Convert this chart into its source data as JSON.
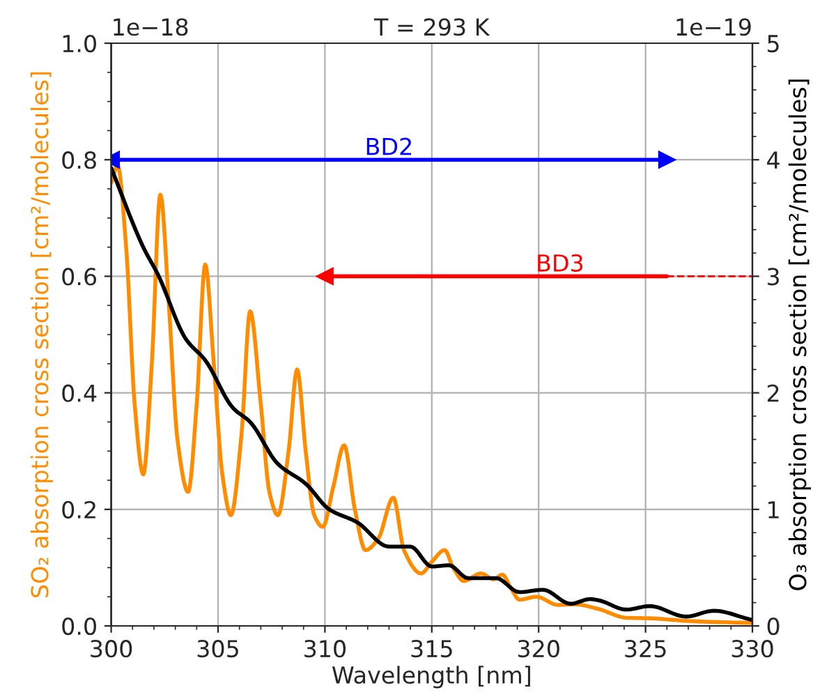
{
  "chart_data": {
    "type": "line",
    "title": "T = 293 K",
    "xlabel": "Wavelength [nm]",
    "ylabel": "SO₂ absorption cross section [cm²/molecules]",
    "y2label": "O₃ absorption cross section [cm²/molecules]",
    "annotations": [
      "1e−18",
      "1e−19",
      {
        "text": "BD2",
        "x": 313,
        "y": 0.8
      },
      {
        "text": "BD3",
        "x": 321,
        "y": 0.6
      }
    ],
    "xlim": [
      300,
      330
    ],
    "xticks": [
      300,
      305,
      310,
      315,
      320,
      325,
      330
    ],
    "ylim": [
      0,
      1.0
    ],
    "yticks": [
      {
        "value": 0,
        "label": "0.0"
      },
      {
        "value": 0.2,
        "label": "0.2"
      },
      {
        "value": 0.4,
        "label": "0.4"
      },
      {
        "value": 0.6,
        "label": "0.6"
      },
      {
        "value": 0.8,
        "label": "0.8"
      },
      {
        "value": 1.0,
        "label": "1.0"
      }
    ],
    "y2lim": [
      0,
      5
    ],
    "y2ticks": [
      0,
      1,
      2,
      3,
      4,
      5
    ],
    "grid": true,
    "series": [
      {
        "color": "#ff8c00",
        "x": [
          300.0,
          300.3,
          300.7,
          301.1,
          301.5,
          301.9,
          302.3,
          302.7,
          303.1,
          303.6,
          304.0,
          304.4,
          304.8,
          305.2,
          305.6,
          306.1,
          306.5,
          307.0,
          307.4,
          307.8,
          308.3,
          308.7,
          309.1,
          309.5,
          309.9,
          310.4,
          310.9,
          311.4,
          311.9,
          312.5,
          313.2,
          313.7,
          314.5,
          315.0,
          315.6,
          316.0,
          316.5,
          317.3,
          317.9,
          318.3,
          318.7,
          319.1,
          319.9,
          320.9,
          321.7,
          322.8,
          324.1,
          325.2,
          327.2,
          330.0
        ],
        "values": [
          0.76,
          0.79,
          0.65,
          0.38,
          0.26,
          0.45,
          0.74,
          0.55,
          0.32,
          0.23,
          0.38,
          0.62,
          0.45,
          0.26,
          0.19,
          0.33,
          0.54,
          0.38,
          0.23,
          0.19,
          0.3,
          0.44,
          0.3,
          0.19,
          0.17,
          0.24,
          0.31,
          0.2,
          0.13,
          0.15,
          0.22,
          0.13,
          0.09,
          0.11,
          0.13,
          0.1,
          0.077,
          0.09,
          0.08,
          0.088,
          0.065,
          0.045,
          0.05,
          0.036,
          0.037,
          0.029,
          0.014,
          0.013,
          0.008,
          0.005
        ]
      },
      {
        "color": "#000000",
        "axis": "y2",
        "x": [
          300.0,
          301.5,
          302.2,
          303.5,
          304.4,
          305.7,
          306.5,
          307.8,
          309.1,
          310.2,
          311.5,
          313.0,
          314.0,
          315.0,
          315.8,
          316.7,
          318.0,
          319.1,
          320.2,
          321.5,
          322.4,
          322.8,
          324.1,
          325.2,
          326.9,
          328.2,
          329.8,
          330.0
        ],
        "values": [
          3.93,
          3.25,
          3.01,
          2.46,
          2.28,
          1.87,
          1.75,
          1.39,
          1.22,
          1.0,
          0.89,
          0.68,
          0.68,
          0.51,
          0.52,
          0.41,
          0.41,
          0.29,
          0.31,
          0.19,
          0.23,
          0.22,
          0.14,
          0.17,
          0.08,
          0.13,
          0.06,
          0.05
        ]
      },
      {
        "color": "#0000ff",
        "marker": "triangle",
        "x": [
          300,
          326
        ],
        "values": [
          0.8,
          0.8
        ]
      },
      {
        "color": "#ff0000",
        "marker": "triangle",
        "x": [
          326,
          310
        ],
        "values": [
          0.6,
          0.6
        ]
      },
      {
        "color": "#ff0000",
        "line_style": "dashed",
        "x": [
          326,
          330
        ],
        "values": [
          0.6,
          0.6
        ]
      }
    ]
  }
}
